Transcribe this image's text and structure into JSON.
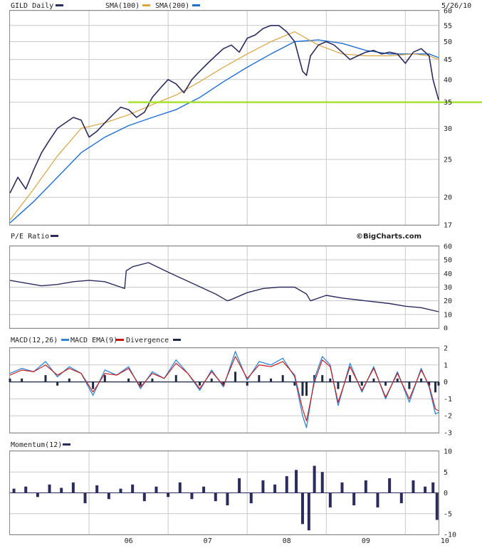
{
  "colors": {
    "price": "#2b2b5e",
    "sma100": "#d9a441",
    "sma200": "#1f6fd1",
    "support": "#a6e22e",
    "pe": "#2b2b5e",
    "macd": "#2f86d8",
    "macd_ema": "#cc1111",
    "divergence": "#1f2a44",
    "momentum": "#2b2b5e"
  },
  "header": {
    "symbol_label": "GILD Daily",
    "sma100_label": "SMA(100)",
    "sma200_label": "SMA(200)",
    "date": "5/26/10",
    "watermark": "©BigCharts.com"
  },
  "chart_data": [
    {
      "type": "line",
      "panel": "price",
      "title": "GILD Daily",
      "scale": "log",
      "ylim": [
        17,
        60
      ],
      "y_ticks": [
        17,
        20,
        25,
        30,
        35,
        40,
        45,
        50,
        55,
        60
      ],
      "x_ticks": [
        "06",
        "07",
        "08",
        "09",
        "10"
      ],
      "x_range": [
        2005.0,
        2010.42
      ],
      "series": [
        {
          "name": "GILD Daily",
          "x": [
            2005.0,
            2005.1,
            2005.2,
            2005.3,
            2005.4,
            2005.5,
            2005.6,
            2005.7,
            2005.8,
            2005.9,
            2006.0,
            2006.1,
            2006.2,
            2006.3,
            2006.4,
            2006.5,
            2006.6,
            2006.7,
            2006.8,
            2006.9,
            2007.0,
            2007.1,
            2007.2,
            2007.3,
            2007.4,
            2007.5,
            2007.6,
            2007.7,
            2007.8,
            2007.9,
            2008.0,
            2008.1,
            2008.2,
            2008.3,
            2008.4,
            2008.5,
            2008.6,
            2008.7,
            2008.75,
            2008.8,
            2008.9,
            2009.0,
            2009.1,
            2009.2,
            2009.3,
            2009.4,
            2009.5,
            2009.6,
            2009.7,
            2009.8,
            2009.9,
            2010.0,
            2010.1,
            2010.2,
            2010.3,
            2010.35,
            2010.42
          ],
          "values": [
            20.5,
            22.5,
            21,
            23.5,
            26,
            28,
            30,
            31,
            32,
            31.5,
            28.5,
            29.5,
            31,
            32.5,
            34,
            33.5,
            32,
            33,
            36,
            38,
            40,
            39,
            37,
            40,
            42,
            44,
            46,
            48,
            49,
            47,
            51,
            52,
            54,
            55,
            55,
            53,
            50,
            42,
            41,
            46,
            49,
            50,
            49,
            47,
            45,
            46,
            47,
            47.5,
            46.5,
            47,
            46.5,
            44,
            47,
            48,
            46,
            40,
            35.5
          ]
        },
        {
          "name": "SMA(100)",
          "x": [
            2005.0,
            2005.3,
            2005.6,
            2005.9,
            2006.2,
            2006.5,
            2006.8,
            2007.1,
            2007.4,
            2007.7,
            2008.0,
            2008.3,
            2008.6,
            2008.9,
            2009.2,
            2009.5,
            2009.8,
            2010.1,
            2010.3,
            2010.42
          ],
          "values": [
            17.5,
            21,
            25.5,
            30,
            31,
            32.5,
            34.5,
            36.5,
            39.5,
            43,
            46.5,
            50,
            53,
            49,
            46.5,
            46,
            46,
            46.5,
            46,
            45
          ]
        },
        {
          "name": "SMA(200)",
          "x": [
            2005.0,
            2005.3,
            2005.6,
            2005.9,
            2006.2,
            2006.5,
            2006.8,
            2007.1,
            2007.4,
            2007.7,
            2008.0,
            2008.3,
            2008.6,
            2008.9,
            2009.2,
            2009.5,
            2009.8,
            2010.1,
            2010.3,
            2010.42
          ],
          "values": [
            17.2,
            19.5,
            22.5,
            26,
            28.5,
            30.5,
            32,
            33.5,
            36,
            39.5,
            43,
            46.5,
            50,
            50.5,
            49.5,
            47.5,
            46.5,
            46.5,
            46.5,
            45.5
          ]
        }
      ],
      "support_level": 35
    },
    {
      "type": "line",
      "panel": "pe",
      "title": "P/E Ratio",
      "ylim": [
        0,
        60
      ],
      "y_ticks": [
        0,
        10,
        20,
        30,
        40,
        50,
        60
      ],
      "series": [
        {
          "name": "P/E Ratio",
          "x": [
            2005.0,
            2005.2,
            2005.4,
            2005.6,
            2005.8,
            2006.0,
            2006.2,
            2006.45,
            2006.47,
            2006.55,
            2006.75,
            2007.0,
            2007.3,
            2007.6,
            2007.75,
            2007.8,
            2008.0,
            2008.2,
            2008.4,
            2008.6,
            2008.75,
            2008.8,
            2009.0,
            2009.2,
            2009.5,
            2009.8,
            2010.0,
            2010.2,
            2010.42
          ],
          "values": [
            35,
            33,
            31,
            32,
            34,
            35,
            34,
            29,
            42,
            45,
            48,
            41,
            33,
            25,
            20,
            21,
            26,
            29,
            30,
            30,
            25,
            20,
            24,
            22,
            20,
            18,
            16,
            15,
            12
          ]
        }
      ]
    },
    {
      "type": "line",
      "panel": "macd",
      "title": "MACD(12,26)",
      "ylim": [
        -3,
        2
      ],
      "y_ticks": [
        -3,
        -2,
        -1,
        0,
        1,
        2
      ],
      "series": [
        {
          "name": "MACD(12,26)",
          "x": [
            2005.0,
            2005.15,
            2005.3,
            2005.45,
            2005.6,
            2005.75,
            2005.9,
            2006.05,
            2006.2,
            2006.35,
            2006.5,
            2006.65,
            2006.8,
            2006.95,
            2007.1,
            2007.25,
            2007.4,
            2007.55,
            2007.7,
            2007.85,
            2008.0,
            2008.15,
            2008.3,
            2008.45,
            2008.6,
            2008.7,
            2008.75,
            2008.85,
            2008.95,
            2009.05,
            2009.15,
            2009.3,
            2009.45,
            2009.6,
            2009.75,
            2009.9,
            2010.05,
            2010.2,
            2010.3,
            2010.38,
            2010.42
          ],
          "values": [
            0.5,
            0.8,
            0.6,
            1.2,
            0.3,
            0.9,
            0.5,
            -0.8,
            0.7,
            0.4,
            0.9,
            -0.4,
            0.6,
            0.2,
            1.3,
            0.5,
            -0.5,
            0.7,
            -0.3,
            1.8,
            0.1,
            1.2,
            1.0,
            1.4,
            0.3,
            -2.0,
            -2.7,
            0.2,
            1.5,
            1.0,
            -1.4,
            1.1,
            -0.6,
            0.9,
            -1.0,
            0.6,
            -1.2,
            0.8,
            -0.3,
            -1.9,
            -1.8
          ]
        },
        {
          "name": "MACD EMA(9)",
          "x": [
            2005.0,
            2005.15,
            2005.3,
            2005.45,
            2005.6,
            2005.75,
            2005.9,
            2006.05,
            2006.2,
            2006.35,
            2006.5,
            2006.65,
            2006.8,
            2006.95,
            2007.1,
            2007.25,
            2007.4,
            2007.55,
            2007.7,
            2007.85,
            2008.0,
            2008.15,
            2008.3,
            2008.45,
            2008.6,
            2008.7,
            2008.75,
            2008.85,
            2008.95,
            2009.05,
            2009.15,
            2009.3,
            2009.45,
            2009.6,
            2009.75,
            2009.9,
            2010.05,
            2010.2,
            2010.3,
            2010.38,
            2010.42
          ],
          "values": [
            0.4,
            0.7,
            0.6,
            1.0,
            0.4,
            0.8,
            0.5,
            -0.6,
            0.5,
            0.4,
            0.8,
            -0.3,
            0.5,
            0.2,
            1.1,
            0.5,
            -0.4,
            0.6,
            -0.2,
            1.5,
            0.2,
            1.0,
            0.9,
            1.2,
            0.4,
            -1.6,
            -2.3,
            0.0,
            1.3,
            0.9,
            -1.2,
            0.9,
            -0.5,
            0.8,
            -0.9,
            0.5,
            -1.0,
            0.7,
            -0.2,
            -1.6,
            -1.7
          ]
        }
      ]
    },
    {
      "type": "bar",
      "panel": "momentum",
      "title": "Momentum(12)",
      "ylim": [
        -10,
        10
      ],
      "y_ticks": [
        -10,
        -5,
        0,
        5,
        10
      ],
      "series": [
        {
          "name": "Momentum(12)",
          "x": [
            2005.05,
            2005.2,
            2005.35,
            2005.5,
            2005.65,
            2005.8,
            2005.95,
            2006.1,
            2006.25,
            2006.4,
            2006.55,
            2006.7,
            2006.85,
            2007.0,
            2007.15,
            2007.3,
            2007.45,
            2007.6,
            2007.75,
            2007.9,
            2008.05,
            2008.2,
            2008.35,
            2008.5,
            2008.62,
            2008.7,
            2008.78,
            2008.85,
            2008.95,
            2009.05,
            2009.2,
            2009.35,
            2009.5,
            2009.65,
            2009.8,
            2009.95,
            2010.1,
            2010.25,
            2010.35,
            2010.4
          ],
          "values": [
            1.0,
            1.5,
            -1.0,
            2.0,
            1.2,
            2.5,
            -2.5,
            1.8,
            -1.5,
            1.0,
            2.0,
            -2.0,
            1.5,
            -1.0,
            2.5,
            -1.5,
            1.5,
            -2.0,
            -3.0,
            3.5,
            -2.5,
            3.0,
            2.0,
            4.0,
            5.5,
            -7.5,
            -9.0,
            6.5,
            5.0,
            -3.5,
            2.5,
            -3.0,
            3.0,
            -3.5,
            3.5,
            -2.5,
            3.0,
            1.5,
            2.5,
            -6.5
          ]
        }
      ]
    }
  ]
}
